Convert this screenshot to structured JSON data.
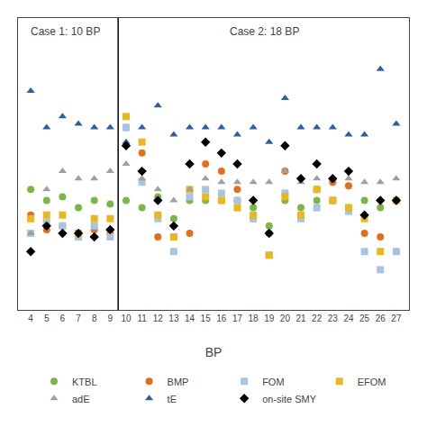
{
  "chart_data": {
    "type": "scatter",
    "x_label": "BP",
    "annotations": [
      "Case 1: 10 BP",
      "Case 2: 18 BP"
    ],
    "divider": 9.5,
    "x": [
      4,
      5,
      6,
      7,
      8,
      9,
      10,
      11,
      12,
      13,
      14,
      15,
      16,
      17,
      18,
      19,
      20,
      21,
      22,
      23,
      24,
      25,
      26,
      27
    ],
    "series": [
      {
        "name": "KTBL",
        "color": "#7ab648",
        "marker": "circle",
        "values": [
          0.55,
          0.52,
          0.53,
          0.5,
          0.52,
          0.51,
          0.52,
          0.5,
          0.53,
          0.47,
          0.52,
          0.52,
          0.52,
          0.52,
          0.5,
          0.45,
          0.52,
          0.5,
          0.52,
          0.52,
          0.5,
          0.52,
          0.5,
          0.52
        ]
      },
      {
        "name": "BMP",
        "color": "#e07020",
        "marker": "circle",
        "values": [
          0.48,
          0.44,
          0.45,
          0.42,
          0.44,
          0.43,
          0.72,
          0.65,
          0.42,
          0.42,
          0.43,
          0.62,
          0.6,
          0.55,
          0.47,
          0.43,
          0.6,
          0.48,
          0.55,
          0.57,
          0.56,
          0.43,
          0.42,
          0.38
        ]
      },
      {
        "name": "FOM",
        "color": "#a8c4e0",
        "marker": "square",
        "values": [
          0.43,
          0.46,
          0.45,
          0.42,
          0.45,
          0.42,
          0.72,
          0.57,
          0.47,
          0.38,
          0.53,
          0.55,
          0.54,
          0.52,
          0.47,
          0.37,
          0.54,
          0.47,
          0.5,
          0.52,
          0.49,
          0.38,
          0.33,
          0.38
        ]
      },
      {
        "name": "EFOM",
        "color": "#e8b820",
        "marker": "square",
        "values": [
          0.47,
          0.48,
          0.48,
          0.43,
          0.47,
          0.47,
          0.75,
          0.68,
          0.48,
          0.42,
          0.55,
          0.53,
          0.52,
          0.5,
          0.48,
          0.37,
          0.53,
          0.48,
          0.55,
          0.52,
          0.5,
          0.47,
          0.38,
          0.52
        ]
      },
      {
        "name": "adE",
        "color": "#a0a0a0",
        "marker": "triangle-up",
        "values": [
          0.43,
          0.55,
          0.6,
          0.58,
          0.58,
          0.6,
          0.62,
          0.58,
          0.55,
          0.52,
          0.55,
          0.58,
          0.57,
          0.57,
          0.57,
          0.57,
          0.6,
          0.57,
          0.58,
          0.58,
          0.58,
          0.57,
          0.57,
          0.58
        ]
      },
      {
        "name": "tE",
        "color": "#2e5fa3",
        "marker": "triangle-up",
        "values": [
          0.82,
          0.72,
          0.75,
          0.73,
          0.72,
          0.72,
          0.68,
          0.72,
          0.78,
          0.7,
          0.72,
          0.72,
          0.72,
          0.7,
          0.72,
          0.68,
          0.8,
          0.72,
          0.72,
          0.72,
          0.7,
          0.7,
          0.88,
          0.73
        ]
      },
      {
        "name": "on-site SMY",
        "color": "#000000",
        "marker": "diamond",
        "values": [
          0.38,
          0.45,
          0.43,
          0.43,
          0.42,
          0.44,
          0.67,
          0.6,
          0.52,
          0.45,
          0.62,
          0.68,
          0.65,
          0.62,
          0.52,
          0.43,
          0.67,
          0.58,
          0.62,
          0.58,
          0.6,
          0.48,
          0.52,
          0.52
        ]
      }
    ],
    "xlim": [
      3.2,
      27.8
    ],
    "xticks": [
      4,
      5,
      6,
      7,
      8,
      9,
      10,
      11,
      12,
      13,
      14,
      15,
      16,
      17,
      18,
      19,
      20,
      21,
      22,
      23,
      24,
      25,
      26,
      27
    ],
    "ylim": [
      0.22,
      1.02
    ],
    "tick_labels": "x",
    "grid": false,
    "legend": "bottom"
  }
}
